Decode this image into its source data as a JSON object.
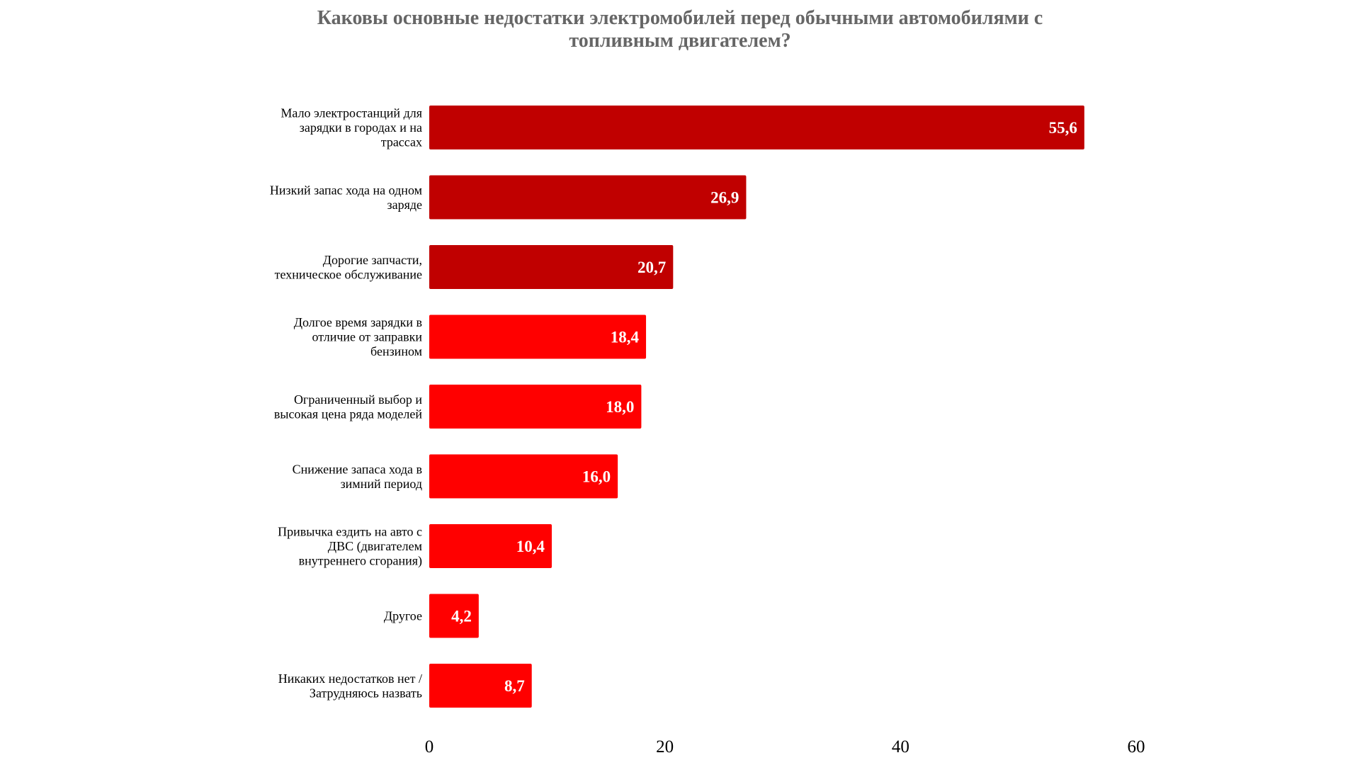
{
  "chart_data": {
    "type": "bar",
    "orientation": "horizontal",
    "title": [
      "Каковы основные недостатки электромобилей перед обычными автомобилями с",
      "топливным двигателем?"
    ],
    "categories": [
      [
        "Мало электростанций для",
        "зарядки в городах и на",
        "трассах"
      ],
      [
        "Низкий запас хода на одном",
        "заряде"
      ],
      [
        "Дорогие запчасти,",
        "техническое обслуживание"
      ],
      [
        "Долгое время зарядки в",
        "отличие от заправки",
        "бензином"
      ],
      [
        "Ограниченный выбор и",
        "высокая цена ряда моделей"
      ],
      [
        "Снижение запаса хода в",
        "зимний период"
      ],
      [
        "Привычка ездить на авто с",
        "ДВС (двигателем",
        "внутреннего сгорания)"
      ],
      [
        "Другое"
      ],
      [
        "Никаких недостатков нет /",
        "Затрудняюсь назвать"
      ]
    ],
    "values": [
      55.6,
      26.9,
      20.7,
      18.4,
      18.0,
      16.0,
      10.4,
      4.2,
      8.7
    ],
    "value_labels": [
      "55,6",
      "26,9",
      "20,7",
      "18,4",
      "18,0",
      "16,0",
      "10,4",
      "4,2",
      "8,7"
    ],
    "bar_colors": [
      "#c00000",
      "#c00000",
      "#c00000",
      "#ff0000",
      "#ff0000",
      "#ff0000",
      "#ff0000",
      "#ff0000",
      "#ff0000"
    ],
    "xlim": [
      0,
      60
    ],
    "xticks": [
      0,
      20,
      40,
      60
    ],
    "xlabel": "",
    "ylabel": "",
    "grid": false,
    "legend": "none"
  }
}
